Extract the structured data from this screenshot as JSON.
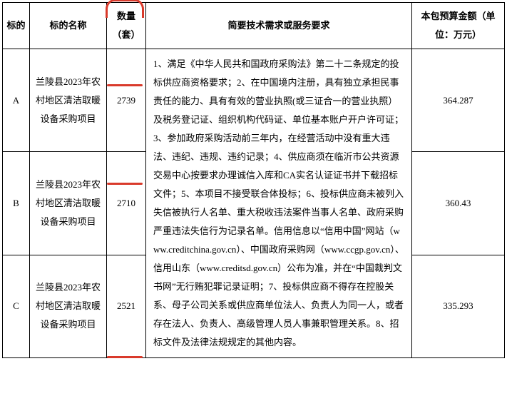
{
  "headers": {
    "col_a": "标的",
    "col_b": "标的名称",
    "col_c": "数量（套）",
    "col_d": "简要技术需求或服务要求",
    "col_e": "本包预算金额（单位：万元）"
  },
  "rows": [
    {
      "id": "A",
      "name": "兰陵县2023年农村地区清洁取暖设备采购项目",
      "qty": "2739",
      "budget": "364.287"
    },
    {
      "id": "B",
      "name": "兰陵县2023年农村地区清洁取暖设备采购项目",
      "qty": "2710",
      "budget": "360.43"
    },
    {
      "id": "C",
      "name": "兰陵县2023年农村地区清洁取暖设备采购项目",
      "qty": "2521",
      "budget": "335.293"
    }
  ],
  "requirements": "1、满足《中华人民共和国政府采购法》第二十二条规定的投标供应商资格要求；2、在中国境内注册，具有独立承担民事责任的能力、具有有效的营业执照(或三证合一的营业执照）及税务登记证、组织机构代码证、单位基本账户开户许可证；3、参加政府采购活动前三年内，在经营活动中没有重大违法、违纪、违规、违约记录；4、供应商须在临沂市公共资源交易中心按要求办理诚信入库和CA实名认证证书并下载招标文件；5、本项目不接受联合体投标；6、投标供应商未被列入失信被执行人名单、重大税收违法案件当事人名单、政府采购严重违法失信行为记录名单。信用信息以“信用中国”网站（www.creditchina.gov.cn）、中国政府采购网（www.ccgp.gov.cn）、信用山东（www.creditsd.gov.cn）公布为准，并在“中国裁判文书网”无行贿犯罪记录证明；7、投标供应商不得存在控股关系、母子公司关系或供应商单位法人、负责人为同一人，或者存在法人、负责人、高级管理人员人事兼职管理关系。8、招标文件及法律法规规定的其他内容。",
  "annotation_color": "#d93a2b"
}
